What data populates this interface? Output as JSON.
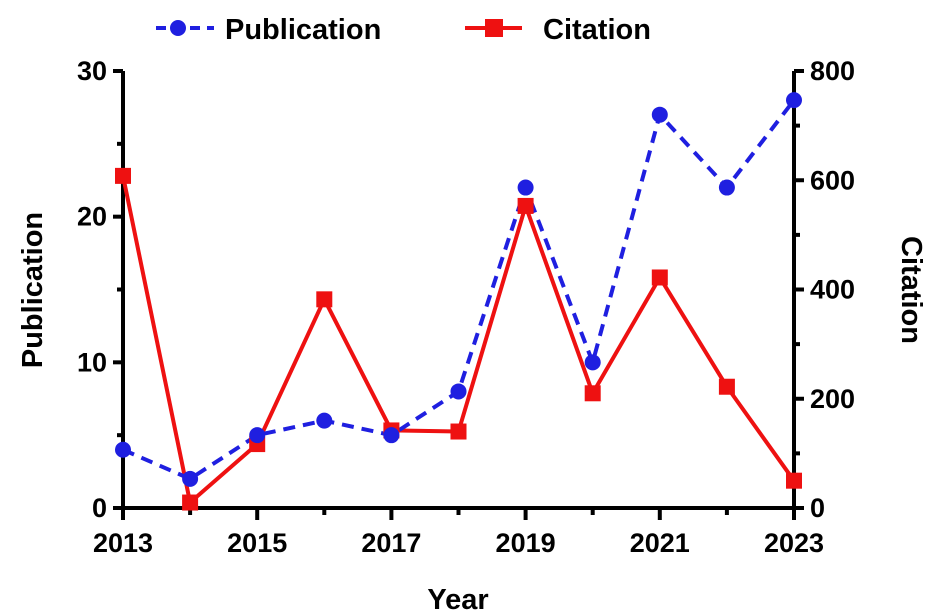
{
  "colors": {
    "publication": "#1f1fe0",
    "citation": "#ee1111",
    "axis": "#000000"
  },
  "chart_data": {
    "type": "line",
    "x": [
      2013,
      2014,
      2015,
      2016,
      2017,
      2018,
      2019,
      2020,
      2021,
      2022,
      2023
    ],
    "xlabel": "Year",
    "xlim": [
      2013,
      2023
    ],
    "xticks": [
      "2013",
      "2015",
      "2017",
      "2019",
      "2021",
      "2023"
    ],
    "series": [
      {
        "name": "Publication",
        "axis": "left",
        "marker": "circle",
        "line_style": "dashed",
        "values": [
          4,
          2,
          5,
          6,
          5,
          8,
          22,
          10,
          27,
          22,
          28
        ]
      },
      {
        "name": "Citation",
        "axis": "right",
        "marker": "square",
        "line_style": "solid",
        "values": [
          608,
          10,
          117,
          382,
          142,
          140,
          553,
          210,
          422,
          222,
          50
        ]
      }
    ],
    "y_left": {
      "label": "Publication",
      "lim": [
        0,
        30
      ],
      "ticks": [
        "0",
        "10",
        "20",
        "30"
      ]
    },
    "y_right": {
      "label": "Citation",
      "lim": [
        0,
        800
      ],
      "ticks": [
        "0",
        "200",
        "400",
        "600",
        "800"
      ]
    },
    "legend": {
      "placement": "top"
    },
    "grid": false
  }
}
